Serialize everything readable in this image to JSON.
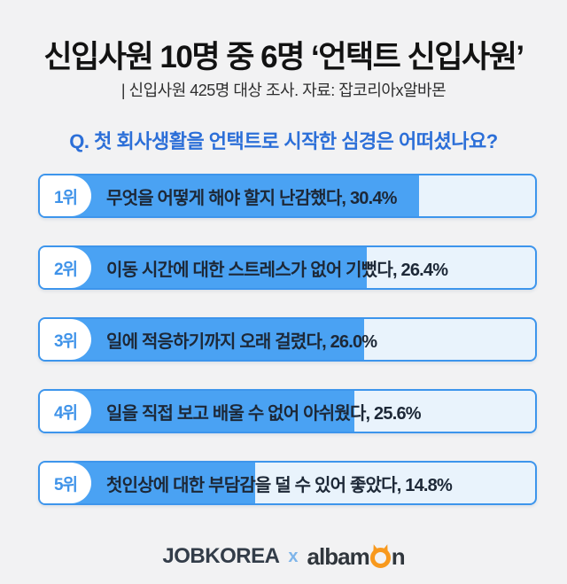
{
  "page": {
    "background_color": "#f2f2f3"
  },
  "header": {
    "title": "신입사원 10명 중 6명 ‘언택트 신입사원’",
    "subtitle": "| 신입사원 425명 대상 조사. 자료: 잡코리아x알바몬"
  },
  "chart_data": {
    "type": "bar",
    "orientation": "horizontal",
    "title": "Q. 첫 회사생활을 언택트로 시작한 심경은 어떠셨나요?",
    "unit": "%",
    "categories": [
      "1위",
      "2위",
      "3위",
      "4위",
      "5위"
    ],
    "labels": [
      "무엇을 어떻게 해야 할지 난감했다",
      "이동 시간에 대한 스트레스가 없어 기뻤다",
      "일에 적응하기까지 오래 걸렸다",
      "일을 직접 보고 배울 수 없어 아쉬웠다",
      "첫인상에 대한 부담감을 덜 수 있어 좋았다"
    ],
    "values": [
      30.4,
      26.4,
      26.0,
      25.6,
      14.8
    ],
    "bar_fill_pct": [
      76.5,
      66.0,
      65.5,
      63.5,
      43.5
    ],
    "xlim": [
      0,
      40
    ],
    "legend": false,
    "grid": false
  },
  "colors": {
    "fill_blue": "#4aa2f3",
    "border_blue": "#3d95ec",
    "track_light_blue": "#e9f3fc",
    "rank_badge_text": "#3f93e9",
    "question_blue": "#2c6fd8",
    "bar_text_dark": "#1d2837",
    "title_black": "#121212",
    "jobkorea_navy": "#333d49",
    "albamon_dark": "#30363c",
    "albamon_orange": "#f8991d",
    "separator_blue": "#7eb5ea"
  },
  "footer": {
    "jobkorea": "JOBKOREA",
    "separator": "x",
    "albamon_prefix": "albam",
    "albamon_suffix": "n",
    "albamon_mascot_icon": "orange-o-with-horns"
  }
}
